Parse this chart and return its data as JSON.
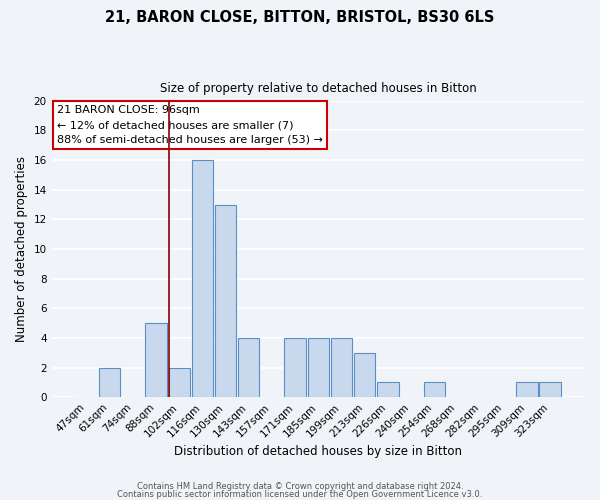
{
  "title": "21, BARON CLOSE, BITTON, BRISTOL, BS30 6LS",
  "subtitle": "Size of property relative to detached houses in Bitton",
  "xlabel": "Distribution of detached houses by size in Bitton",
  "ylabel": "Number of detached properties",
  "bar_color": "#c9d9ed",
  "bar_edge_color": "#5b8ec4",
  "bg_color": "#f0f4f9",
  "grid_color": "#ffffff",
  "categories": [
    "47sqm",
    "61sqm",
    "74sqm",
    "88sqm",
    "102sqm",
    "116sqm",
    "130sqm",
    "143sqm",
    "157sqm",
    "171sqm",
    "185sqm",
    "199sqm",
    "213sqm",
    "226sqm",
    "240sqm",
    "254sqm",
    "268sqm",
    "282sqm",
    "295sqm",
    "309sqm",
    "323sqm"
  ],
  "values": [
    0,
    2,
    0,
    5,
    2,
    16,
    13,
    4,
    0,
    4,
    4,
    4,
    3,
    1,
    0,
    1,
    0,
    0,
    0,
    1,
    1
  ],
  "ylim": [
    0,
    20
  ],
  "yticks": [
    0,
    2,
    4,
    6,
    8,
    10,
    12,
    14,
    16,
    18,
    20
  ],
  "vline_color": "#8b0000",
  "vline_x": 3.57,
  "annotation_line1": "21 BARON CLOSE: 96sqm",
  "annotation_line2": "← 12% of detached houses are smaller (7)",
  "annotation_line3": "88% of semi-detached houses are larger (53) →",
  "annotation_box_facecolor": "#ffffff",
  "annotation_box_edgecolor": "#cc0000",
  "footer1": "Contains HM Land Registry data © Crown copyright and database right 2024.",
  "footer2": "Contains public sector information licensed under the Open Government Licence v3.0."
}
